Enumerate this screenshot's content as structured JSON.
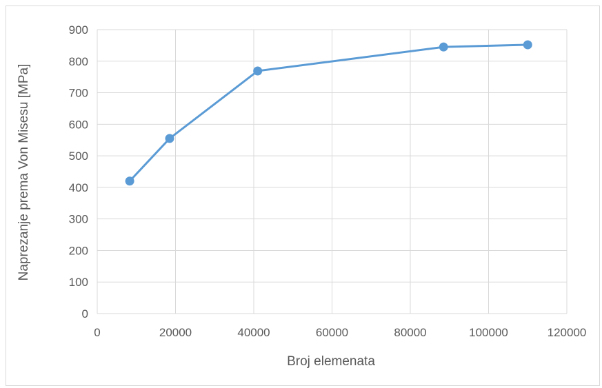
{
  "chart_data": {
    "type": "line",
    "title": "",
    "xlabel": "Broj elemenata",
    "ylabel": "Naprezanje prema Von Misesu [MPa]",
    "xlim": [
      0,
      120000
    ],
    "ylim": [
      0,
      900
    ],
    "x_ticks": [
      0,
      20000,
      40000,
      60000,
      80000,
      100000,
      120000
    ],
    "y_ticks": [
      0,
      100,
      200,
      300,
      400,
      500,
      600,
      700,
      800,
      900
    ],
    "x_tick_labels": [
      "0",
      "20000",
      "40000",
      "60000",
      "80000",
      "100000",
      "120000"
    ],
    "y_tick_labels": [
      "0",
      "100",
      "200",
      "300",
      "400",
      "500",
      "600",
      "700",
      "800",
      "900"
    ],
    "grid": true,
    "legend": "none",
    "series": [
      {
        "color": "#5b9bd5",
        "x": [
          8300,
          18500,
          41000,
          88500,
          110000
        ],
        "y": [
          420,
          555,
          769,
          845,
          852
        ]
      }
    ]
  }
}
